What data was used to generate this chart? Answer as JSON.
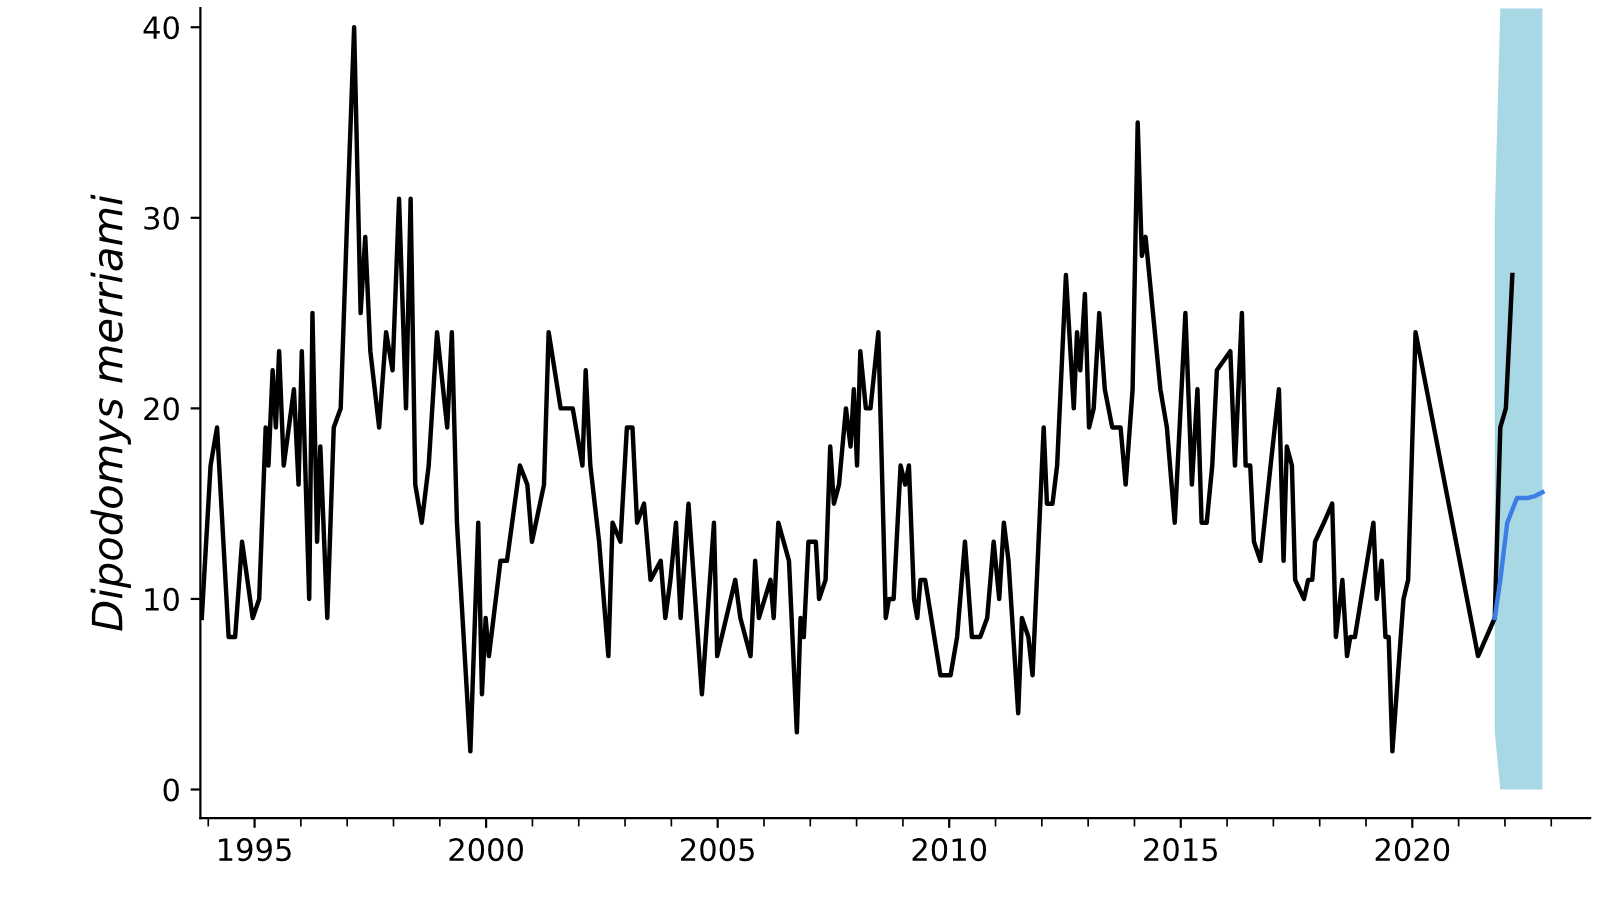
{
  "chart_data": {
    "type": "line",
    "ylabel": "Dipodomys merriami",
    "xlim": [
      1993.83,
      2023.84
    ],
    "xticks": [
      1995,
      2000,
      2005,
      2010,
      2015,
      2020
    ],
    "ylim": [
      -1.5,
      41
    ],
    "yticks": [
      0,
      10,
      20,
      30,
      40
    ],
    "grid": false,
    "legend": false,
    "series": [
      {
        "color": "#000000",
        "x": [
          1993.86,
          1994.05,
          1994.19,
          1994.44,
          1994.58,
          1994.73,
          1994.96,
          1995.1,
          1995.24,
          1995.3,
          1995.39,
          1995.46,
          1995.53,
          1995.63,
          1995.85,
          1995.95,
          1996.02,
          1996.18,
          1996.25,
          1996.35,
          1996.42,
          1996.57,
          1996.71,
          1996.86,
          1997.0,
          1997.15,
          1997.29,
          1997.39,
          1997.5,
          1997.69,
          1997.84,
          1997.98,
          1998.12,
          1998.27,
          1998.37,
          1998.47,
          1998.61,
          1998.76,
          1998.94,
          1999.16,
          1999.26,
          1999.37,
          1999.66,
          1999.83,
          1999.91,
          1999.99,
          2000.06,
          2000.31,
          2000.45,
          2000.73,
          2000.89,
          2000.99,
          2001.25,
          2001.35,
          2001.61,
          2001.87,
          2002.08,
          2002.15,
          2002.25,
          2002.44,
          2002.64,
          2002.73,
          2002.9,
          2003.04,
          2003.16,
          2003.26,
          2003.41,
          2003.55,
          2003.77,
          2003.87,
          2003.98,
          2004.1,
          2004.2,
          2004.37,
          2004.66,
          2004.92,
          2004.99,
          2005.38,
          2005.49,
          2005.71,
          2005.81,
          2005.89,
          2006.14,
          2006.21,
          2006.31,
          2006.54,
          2006.71,
          2006.79,
          2006.86,
          2006.96,
          2007.12,
          2007.19,
          2007.33,
          2007.43,
          2007.51,
          2007.62,
          2007.77,
          2007.87,
          2007.94,
          2008.01,
          2008.08,
          2008.2,
          2008.3,
          2008.47,
          2008.63,
          2008.7,
          2008.8,
          2008.95,
          2009.05,
          2009.13,
          2009.24,
          2009.31,
          2009.38,
          2009.48,
          2009.81,
          2010.03,
          2010.17,
          2010.34,
          2010.49,
          2010.67,
          2010.82,
          2010.96,
          2011.08,
          2011.18,
          2011.28,
          2011.49,
          2011.57,
          2011.71,
          2011.8,
          2012.04,
          2012.11,
          2012.23,
          2012.33,
          2012.52,
          2012.69,
          2012.76,
          2012.83,
          2012.93,
          2013.02,
          2013.12,
          2013.24,
          2013.36,
          2013.52,
          2013.7,
          2013.81,
          2013.96,
          2014.07,
          2014.16,
          2014.24,
          2014.56,
          2014.7,
          2014.87,
          2015.1,
          2015.24,
          2015.36,
          2015.45,
          2015.56,
          2015.68,
          2015.78,
          2016.07,
          2016.17,
          2016.32,
          2016.4,
          2016.5,
          2016.58,
          2016.72,
          2016.94,
          2017.12,
          2017.22,
          2017.29,
          2017.4,
          2017.47,
          2017.66,
          2017.75,
          2017.84,
          2017.9,
          2018.09,
          2018.27,
          2018.35,
          2018.49,
          2018.59,
          2018.66,
          2018.76,
          2019.16,
          2019.23,
          2019.34,
          2019.42,
          2019.49,
          2019.57,
          2019.81,
          2019.91,
          2020.07,
          2021.42,
          2021.78,
          2021.9,
          2022.02,
          2022.16
        ],
        "values": [
          9,
          17,
          19,
          8,
          8,
          13,
          9,
          10,
          19,
          17,
          22,
          19,
          23,
          17,
          21,
          16,
          23,
          10,
          25,
          13,
          18,
          9,
          19,
          20,
          30,
          40,
          25,
          29,
          23,
          19,
          24,
          22,
          31,
          20,
          31,
          16,
          14,
          17,
          24,
          19,
          24,
          14,
          2,
          14,
          5,
          9,
          7,
          12,
          12,
          17,
          16,
          13,
          16,
          24,
          20,
          20,
          17,
          22,
          17,
          13,
          7,
          14,
          13,
          19,
          19,
          14,
          15,
          11,
          12,
          9,
          11,
          14,
          9,
          15,
          5,
          14,
          7,
          11,
          9,
          7,
          12,
          9,
          11,
          9,
          14,
          12,
          3,
          9,
          8,
          13,
          13,
          10,
          11,
          18,
          15,
          16,
          20,
          18,
          21,
          17,
          23,
          20,
          20,
          24,
          9,
          10,
          10,
          17,
          16,
          17,
          10,
          9,
          11,
          11,
          6,
          6,
          8,
          13,
          8,
          8,
          9,
          13,
          10,
          14,
          12,
          4,
          9,
          8,
          6,
          19,
          15,
          15,
          17,
          27,
          20,
          24,
          22,
          26,
          19,
          20,
          25,
          21,
          19,
          19,
          16,
          21,
          35,
          28,
          29,
          21,
          19,
          14,
          25,
          16,
          21,
          14,
          14,
          17,
          22,
          23,
          17,
          25,
          17,
          17,
          13,
          12,
          17,
          21,
          12,
          18,
          17,
          11,
          10,
          11,
          11,
          13,
          14,
          15,
          8,
          11,
          7,
          8,
          8,
          14,
          10,
          12,
          8,
          8,
          2,
          10,
          11,
          24,
          7,
          9,
          19,
          20,
          27
        ]
      },
      {
        "color": "#3c7ee6",
        "x": [
          2021.78,
          2021.9,
          2022.05,
          2022.26,
          2022.5,
          2022.65,
          2022.81
        ],
        "values": [
          9,
          11,
          14,
          15.3,
          15.3,
          15.4,
          15.6
        ],
        "lower": [
          3,
          0,
          0,
          0,
          0,
          0,
          0
        ],
        "upper": [
          30,
          41,
          41,
          41,
          41,
          41,
          41
        ]
      }
    ]
  }
}
